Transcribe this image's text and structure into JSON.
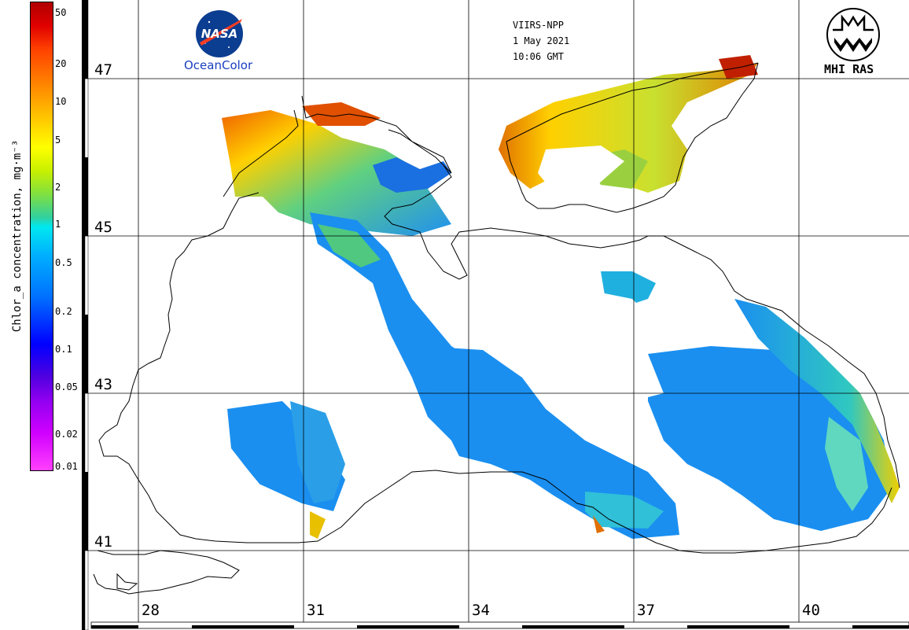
{
  "header": {
    "satellite": "VIIRS-NPP",
    "date": "1 May 2021",
    "time": "10:06 GMT",
    "left_logo_text": "OceanColor",
    "left_logo_mark": "NASA",
    "right_logo_text": "MHI RAS"
  },
  "colorbar": {
    "label": "Chlor_a concentration, mg·m⁻³",
    "ticks": [
      "50",
      "20",
      "10",
      "5",
      "2",
      "1",
      "0.5",
      "0.2",
      "0.1",
      "0.05",
      "0.02",
      "0.01"
    ],
    "colors": [
      "#b00000",
      "#ff4000",
      "#ffc000",
      "#ffff00",
      "#80e040",
      "#00e8f0",
      "#0070ff",
      "#0000ff",
      "#9000f0",
      "#ff40ff"
    ]
  },
  "latitudes": [
    "47",
    "45",
    "43",
    "41"
  ],
  "longitudes": [
    "28",
    "31",
    "34",
    "37",
    "40"
  ],
  "colors": {
    "land": "#ffffff",
    "coastline": "#000000",
    "grid": "#000000",
    "open_sea": "#1a8ff0",
    "coastal_high": "#f0a000",
    "shelf_green": "#9ad040"
  }
}
